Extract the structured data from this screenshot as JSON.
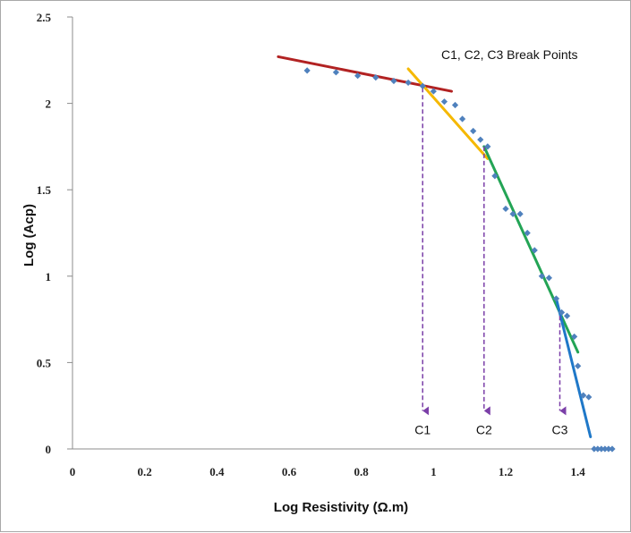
{
  "chart_data": {
    "type": "scatter",
    "xlabel": "Log  Resistivity (Ω.m)",
    "ylabel": "Log (Acp)",
    "xlim": [
      0,
      1.5
    ],
    "ylim": [
      0,
      2.5
    ],
    "x_ticks": [
      0,
      0.2,
      0.4,
      0.6,
      0.8,
      1,
      1.2,
      1.4
    ],
    "x_tick_labels": [
      "0",
      "0.2",
      "0.4",
      "0.6",
      "0.8",
      "1",
      "1.2",
      "1.4"
    ],
    "y_ticks": [
      0,
      0.5,
      1,
      1.5,
      2,
      2.5
    ],
    "y_tick_labels": [
      "0",
      "0.5",
      "1",
      "1.5",
      "2",
      "2.5"
    ],
    "annotation": "C1, C2, C3 Break Points",
    "series": [
      {
        "name": "data",
        "color": "#4f81bd",
        "points": [
          [
            0.65,
            2.19
          ],
          [
            0.73,
            2.18
          ],
          [
            0.79,
            2.16
          ],
          [
            0.84,
            2.15
          ],
          [
            0.89,
            2.13
          ],
          [
            0.93,
            2.12
          ],
          [
            0.97,
            2.1
          ],
          [
            1.0,
            2.07
          ],
          [
            1.03,
            2.01
          ],
          [
            1.06,
            1.99
          ],
          [
            1.08,
            1.91
          ],
          [
            1.11,
            1.84
          ],
          [
            1.13,
            1.79
          ],
          [
            1.15,
            1.75
          ],
          [
            1.17,
            1.58
          ],
          [
            1.2,
            1.39
          ],
          [
            1.22,
            1.36
          ],
          [
            1.24,
            1.36
          ],
          [
            1.26,
            1.25
          ],
          [
            1.28,
            1.15
          ],
          [
            1.3,
            1.0
          ],
          [
            1.32,
            0.99
          ],
          [
            1.34,
            0.87
          ],
          [
            1.355,
            0.79
          ],
          [
            1.37,
            0.77
          ],
          [
            1.39,
            0.65
          ],
          [
            1.4,
            0.48
          ],
          [
            1.415,
            0.31
          ],
          [
            1.43,
            0.3
          ],
          [
            1.445,
            0.0
          ],
          [
            1.455,
            0.0
          ],
          [
            1.465,
            0.0
          ],
          [
            1.475,
            0.0
          ],
          [
            1.485,
            0.0
          ],
          [
            1.495,
            0.0
          ]
        ]
      }
    ],
    "fit_lines": [
      {
        "name": "segment-1",
        "color": "#b22222",
        "from": [
          0.57,
          2.27
        ],
        "to": [
          1.05,
          2.07
        ]
      },
      {
        "name": "segment-2",
        "color": "#f5b800",
        "from": [
          0.93,
          2.2
        ],
        "to": [
          1.15,
          1.68
        ]
      },
      {
        "name": "segment-3",
        "color": "#23a455",
        "from": [
          1.14,
          1.75
        ],
        "to": [
          1.4,
          0.56
        ]
      },
      {
        "name": "segment-4",
        "color": "#1f78c8",
        "from": [
          1.34,
          0.87
        ],
        "to": [
          1.435,
          0.07
        ]
      }
    ],
    "break_points": [
      {
        "label": "C1",
        "x": 0.97,
        "y_top": 2.09,
        "y_bottom": 0.2
      },
      {
        "label": "C2",
        "x": 1.14,
        "y_top": 1.75,
        "y_bottom": 0.2
      },
      {
        "label": "C3",
        "x": 1.35,
        "y_top": 0.77,
        "y_bottom": 0.2
      }
    ],
    "break_line_color": "#7b3fa8",
    "grid": false
  }
}
